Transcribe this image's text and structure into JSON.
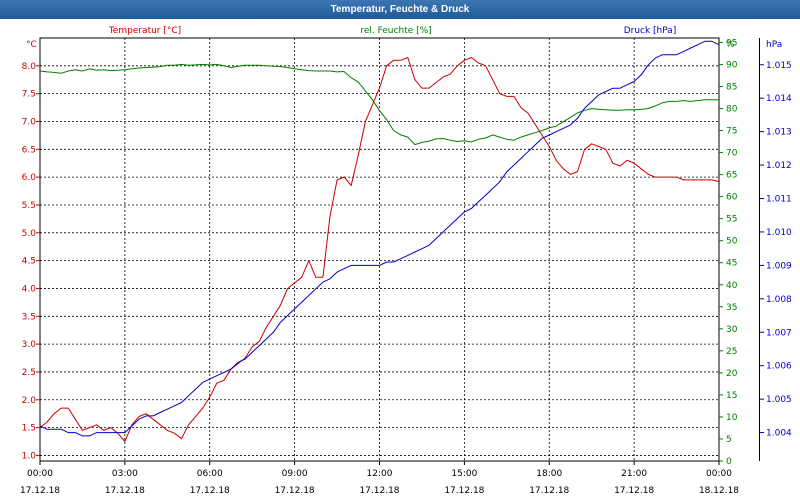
{
  "window": {
    "title": "Temperatur, Feuchte & Druck"
  },
  "chart_data": {
    "type": "line",
    "title": "Temperatur, Feuchte & Druck",
    "grid": true,
    "x_ticks": [
      {
        "time": "00:00",
        "date": "17.12.18"
      },
      {
        "time": "03:00",
        "date": "17.12.18"
      },
      {
        "time": "06:00",
        "date": "17.12.18"
      },
      {
        "time": "09:00",
        "date": "17.12.18"
      },
      {
        "time": "12:00",
        "date": "17.12.18"
      },
      {
        "time": "15:00",
        "date": "17.12.18"
      },
      {
        "time": "18:00",
        "date": "17.12.18"
      },
      {
        "time": "21:00",
        "date": "17.12.18"
      },
      {
        "time": "00:00",
        "date": "18.12.18"
      }
    ],
    "x_range_hours": [
      0,
      24
    ],
    "axes": {
      "temperature": {
        "label": "Temperatur [°C]",
        "unit": "°C",
        "range": [
          0.9,
          8.5
        ],
        "ticks": [
          "1.0",
          "1.5",
          "2.0",
          "2.5",
          "3.0",
          "3.5",
          "4.0",
          "4.5",
          "5.0",
          "5.5",
          "6.0",
          "6.5",
          "7.0",
          "7.5",
          "8.0"
        ],
        "color": "#cc0000"
      },
      "humidity": {
        "label": "rel. Feuchte [%]",
        "unit": "%",
        "range": [
          0,
          96
        ],
        "ticks": [
          "0",
          "5",
          "10",
          "15",
          "20",
          "25",
          "30",
          "35",
          "40",
          "45",
          "50",
          "55",
          "60",
          "65",
          "70",
          "75",
          "80",
          "85",
          "90",
          "95"
        ],
        "color": "#008000"
      },
      "pressure": {
        "label": "Druck [hPa]",
        "unit": "hPa",
        "range": [
          1.00315,
          1.0158
        ],
        "ticks": [
          "1.004",
          "1.005",
          "1.006",
          "1.007",
          "1.008",
          "1.009",
          "1.010",
          "1.011",
          "1.012",
          "1.013",
          "1.014",
          "1.015"
        ],
        "color": "#0000cc"
      }
    },
    "series": [
      {
        "name": "Temperatur [°C]",
        "axis": "temperature",
        "color": "#cc0000",
        "x": [
          0,
          0.25,
          0.5,
          0.75,
          1.0,
          1.25,
          1.5,
          1.75,
          2.0,
          2.25,
          2.5,
          2.75,
          3.0,
          3.25,
          3.5,
          3.75,
          4.0,
          4.25,
          4.5,
          4.75,
          5.0,
          5.25,
          5.5,
          5.75,
          6.0,
          6.25,
          6.5,
          6.75,
          7.0,
          7.25,
          7.5,
          7.75,
          8.0,
          8.25,
          8.5,
          8.75,
          9.0,
          9.25,
          9.5,
          9.75,
          10.0,
          10.25,
          10.5,
          10.75,
          11.0,
          11.25,
          11.5,
          11.75,
          12.0,
          12.25,
          12.5,
          12.75,
          13.0,
          13.25,
          13.5,
          13.75,
          14.0,
          14.25,
          14.5,
          14.75,
          15.0,
          15.25,
          15.5,
          15.75,
          16.0,
          16.25,
          16.5,
          16.75,
          17.0,
          17.25,
          17.5,
          17.75,
          18.0,
          18.25,
          18.5,
          18.75,
          19.0,
          19.25,
          19.5,
          19.75,
          20.0,
          20.25,
          20.5,
          20.75,
          21.0,
          21.25,
          21.5,
          21.75,
          22.0,
          22.25,
          22.5,
          22.75,
          23.0,
          23.25,
          23.5,
          23.75,
          24.0
        ],
        "values": [
          1.5,
          1.6,
          1.75,
          1.85,
          1.85,
          1.65,
          1.45,
          1.5,
          1.55,
          1.45,
          1.5,
          1.4,
          1.25,
          1.55,
          1.7,
          1.75,
          1.65,
          1.55,
          1.45,
          1.4,
          1.3,
          1.55,
          1.7,
          1.85,
          2.05,
          2.3,
          2.35,
          2.55,
          2.65,
          2.75,
          2.95,
          3.05,
          3.3,
          3.5,
          3.7,
          4.0,
          4.1,
          4.2,
          4.5,
          4.2,
          4.2,
          5.3,
          5.95,
          6.0,
          5.85,
          6.4,
          7.0,
          7.3,
          7.6,
          8.0,
          8.1,
          8.1,
          8.15,
          7.75,
          7.6,
          7.6,
          7.7,
          7.8,
          7.85,
          8.0,
          8.1,
          8.15,
          8.05,
          8.0,
          7.75,
          7.5,
          7.45,
          7.45,
          7.25,
          7.15,
          6.95,
          6.75,
          6.55,
          6.3,
          6.15,
          6.05,
          6.1,
          6.5,
          6.6,
          6.55,
          6.5,
          6.25,
          6.2,
          6.3,
          6.25,
          6.15,
          6.05,
          6.0,
          6.0,
          6.0,
          6.0,
          5.95,
          5.95,
          5.95,
          5.95,
          5.95,
          5.92
        ]
      },
      {
        "name": "rel. Feuchte [%]",
        "axis": "humidity",
        "color": "#008000",
        "x": [
          0,
          0.25,
          0.5,
          0.75,
          1.0,
          1.25,
          1.5,
          1.75,
          2.0,
          2.25,
          2.5,
          2.75,
          3.0,
          3.25,
          3.5,
          3.75,
          4.0,
          4.25,
          4.5,
          4.75,
          5.0,
          5.25,
          5.5,
          5.75,
          6.0,
          6.25,
          6.5,
          6.75,
          7.0,
          7.25,
          7.5,
          7.75,
          8.0,
          8.25,
          8.5,
          8.75,
          9.0,
          9.25,
          9.5,
          9.75,
          10.0,
          10.25,
          10.5,
          10.75,
          11.0,
          11.25,
          11.5,
          11.75,
          12.0,
          12.25,
          12.5,
          12.75,
          13.0,
          13.25,
          13.5,
          13.75,
          14.0,
          14.25,
          14.5,
          14.75,
          15.0,
          15.25,
          15.5,
          15.75,
          16.0,
          16.25,
          16.5,
          16.75,
          17.0,
          17.25,
          17.5,
          17.75,
          18.0,
          18.25,
          18.5,
          18.75,
          19.0,
          19.25,
          19.5,
          19.75,
          20.0,
          20.25,
          20.5,
          20.75,
          21.0,
          21.25,
          21.5,
          21.75,
          22.0,
          22.25,
          22.5,
          22.75,
          23.0,
          23.25,
          23.5,
          23.75,
          24.0
        ],
        "values": [
          88.5,
          88.3,
          88.2,
          88.0,
          88.5,
          88.8,
          88.5,
          89.0,
          88.7,
          88.8,
          88.6,
          88.7,
          88.8,
          89.0,
          89.2,
          89.3,
          89.4,
          89.5,
          89.8,
          89.8,
          90.0,
          89.8,
          89.9,
          90.0,
          89.9,
          90.0,
          89.7,
          89.3,
          89.6,
          89.8,
          89.8,
          89.8,
          89.7,
          89.6,
          89.5,
          89.3,
          89.0,
          88.8,
          88.6,
          88.5,
          88.5,
          88.5,
          88.3,
          88.4,
          87.0,
          86.0,
          84.0,
          82.0,
          79.5,
          77.5,
          75.0,
          74.0,
          73.5,
          71.8,
          72.3,
          72.6,
          73.1,
          73.2,
          72.8,
          72.5,
          72.7,
          72.4,
          73.0,
          73.3,
          74.0,
          73.5,
          73.0,
          72.8,
          73.5,
          74.0,
          74.5,
          75.0,
          75.6,
          76.0,
          77.0,
          78.0,
          79.0,
          79.6,
          80.0,
          79.8,
          79.7,
          79.6,
          79.6,
          79.7,
          79.7,
          79.8,
          80.0,
          80.6,
          81.3,
          81.6,
          81.6,
          81.8,
          81.6,
          81.8,
          82.0,
          82.0,
          82.0
        ]
      },
      {
        "name": "Druck [hPa]",
        "axis": "pressure",
        "color": "#0000cc",
        "x": [
          0,
          0.25,
          0.5,
          0.75,
          1.0,
          1.25,
          1.5,
          1.75,
          2.0,
          2.25,
          2.5,
          2.75,
          3.0,
          3.25,
          3.5,
          3.75,
          4.0,
          4.25,
          4.5,
          4.75,
          5.0,
          5.25,
          5.5,
          5.75,
          6.0,
          6.25,
          6.5,
          6.75,
          7.0,
          7.25,
          7.5,
          7.75,
          8.0,
          8.25,
          8.5,
          8.75,
          9.0,
          9.25,
          9.5,
          9.75,
          10.0,
          10.25,
          10.5,
          10.75,
          11.0,
          11.25,
          11.5,
          11.75,
          12.0,
          12.25,
          12.5,
          12.75,
          13.0,
          13.25,
          13.5,
          13.75,
          14.0,
          14.25,
          14.5,
          14.75,
          15.0,
          15.25,
          15.5,
          15.75,
          16.0,
          16.25,
          16.5,
          16.75,
          17.0,
          17.25,
          17.5,
          17.75,
          18.0,
          18.25,
          18.5,
          18.75,
          19.0,
          19.25,
          19.5,
          19.75,
          20.0,
          20.25,
          20.5,
          20.75,
          21.0,
          21.25,
          21.5,
          21.75,
          22.0,
          22.25,
          22.5,
          22.75,
          23.0,
          23.25,
          23.5,
          23.75,
          24.0
        ],
        "values": [
          1.0042,
          1.0041,
          1.0041,
          1.0041,
          1.004,
          1.004,
          1.0039,
          1.0039,
          1.004,
          1.004,
          1.004,
          1.004,
          1.004,
          1.0042,
          1.0044,
          1.0045,
          1.0045,
          1.0046,
          1.0047,
          1.0048,
          1.0049,
          1.0051,
          1.0053,
          1.0055,
          1.0056,
          1.0057,
          1.0058,
          1.0059,
          1.0061,
          1.0062,
          1.0064,
          1.0066,
          1.0068,
          1.007,
          1.0073,
          1.0075,
          1.0077,
          1.0079,
          1.0081,
          1.0083,
          1.0085,
          1.0086,
          1.0088,
          1.0089,
          1.009,
          1.009,
          1.009,
          1.009,
          1.009,
          1.0091,
          1.0091,
          1.0092,
          1.0093,
          1.0094,
          1.0095,
          1.0096,
          1.0098,
          1.01,
          1.0102,
          1.0104,
          1.0106,
          1.0107,
          1.0109,
          1.0111,
          1.0113,
          1.0115,
          1.0118,
          1.012,
          1.0122,
          1.0124,
          1.0126,
          1.0128,
          1.0129,
          1.013,
          1.0131,
          1.0132,
          1.0134,
          1.0137,
          1.0139,
          1.0141,
          1.0142,
          1.0143,
          1.0143,
          1.0144,
          1.0145,
          1.0147,
          1.015,
          1.0152,
          1.0153,
          1.0153,
          1.0153,
          1.0154,
          1.0155,
          1.0156,
          1.0157,
          1.0157,
          1.0156
        ]
      }
    ]
  }
}
